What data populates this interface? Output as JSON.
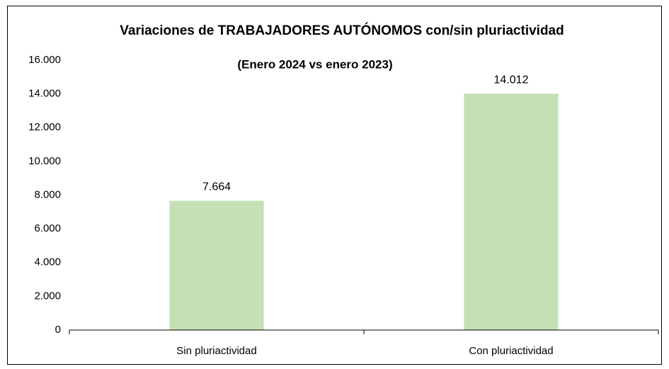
{
  "chart_data": {
    "type": "bar",
    "title": "Variaciones  de TRABAJADORES AUTÓNOMOS con/sin pluriactividad",
    "subtitle": "(Enero 2024 vs enero 2023)",
    "categories": [
      "Sin pluriactividad",
      "Con pluriactividad"
    ],
    "values": [
      7664,
      14012
    ],
    "value_labels": [
      "7.664",
      "14.012"
    ],
    "color": "#c5e0b4",
    "ylim": [
      0,
      16000
    ],
    "yticks": [
      0,
      {
        "value": 2000,
        "label": "2.000"
      },
      {
        "value": 4000,
        "label": "4.000"
      },
      {
        "value": 6000,
        "label": "6.000"
      },
      {
        "value": 8000,
        "label": "8.000"
      },
      {
        "value": 10000,
        "label": "10.000"
      },
      {
        "value": 12000,
        "label": "12.000"
      },
      {
        "value": 14000,
        "label": "14.000"
      },
      {
        "value": 16000,
        "label": "16.000"
      }
    ],
    "grid": false
  }
}
